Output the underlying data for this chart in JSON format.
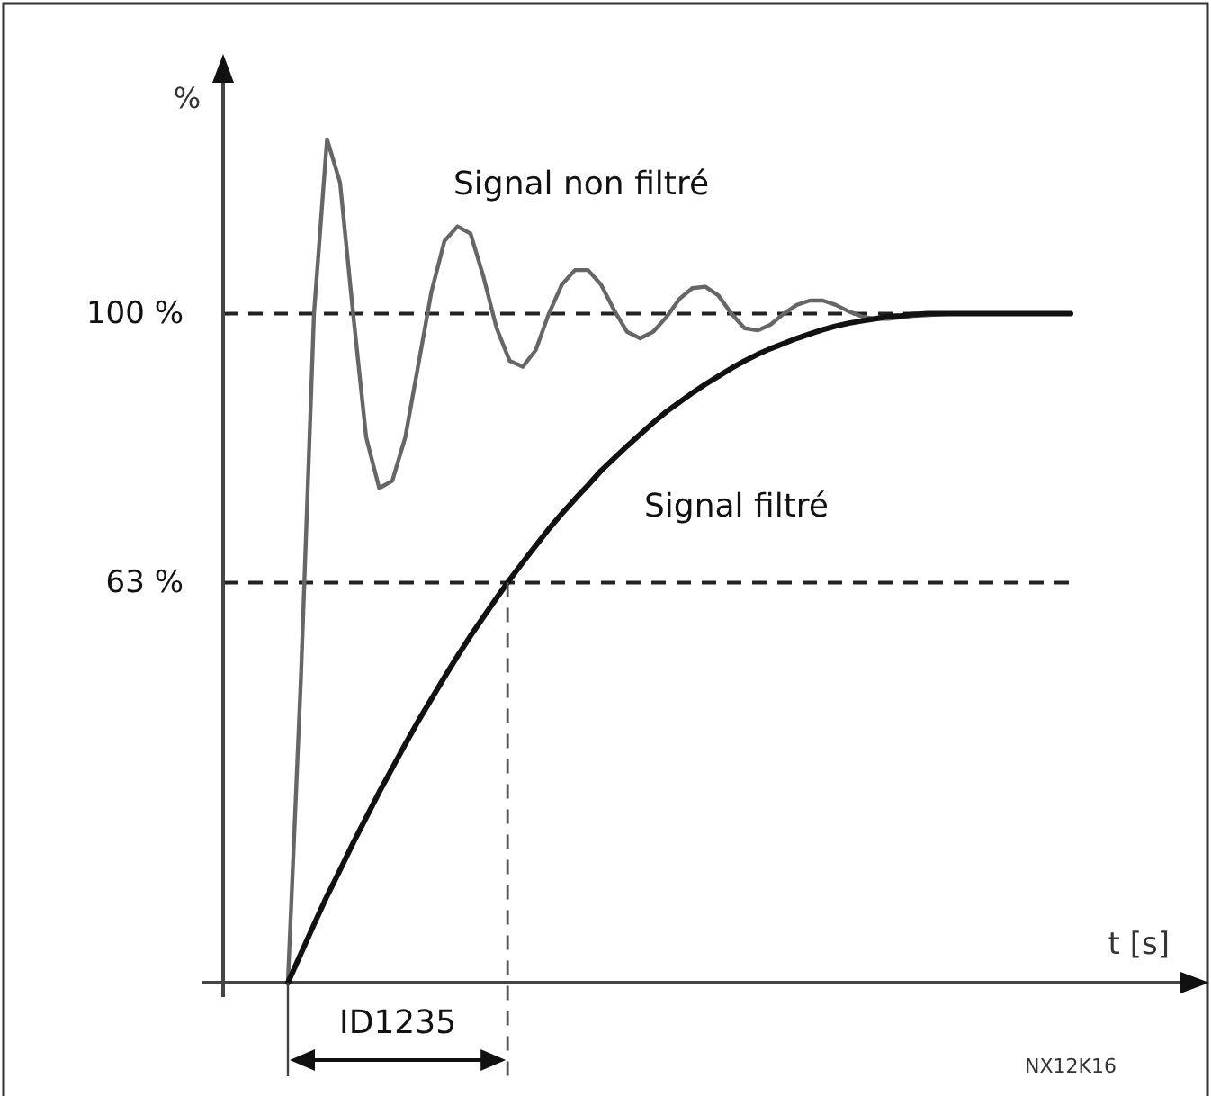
{
  "chart_data": {
    "type": "line",
    "ylabel": "%",
    "xlabel": "t [s]",
    "tick_labels": "y",
    "categories": [
      null,
      null,
      null,
      null,
      null,
      null,
      null,
      null,
      null,
      null,
      null,
      null,
      null,
      null,
      null,
      null,
      null,
      null,
      null,
      null,
      null,
      null,
      null,
      null,
      null,
      null,
      null,
      null,
      null,
      null,
      null,
      null,
      null,
      null,
      null,
      null,
      null,
      null,
      null,
      null,
      null,
      null,
      null,
      null,
      null,
      null,
      null,
      null,
      null,
      null,
      null,
      null,
      null,
      null,
      null,
      null,
      null,
      null,
      null,
      null,
      null
    ],
    "ylim": [
      8,
      132
    ],
    "yticks": [
      {
        "value": 63,
        "label": "63 %"
      },
      {
        "value": 100,
        "label": "100 %"
      }
    ],
    "series": [
      {
        "name": "Signal non filtré",
        "color": "#666666",
        "values": [
          8,
          50,
          100,
          124,
          118,
          100,
          83,
          76,
          77,
          83,
          93,
          103,
          110,
          112,
          111,
          105,
          98,
          93.5,
          92.7,
          95,
          100,
          104,
          106,
          106,
          104,
          100.5,
          97.5,
          96.6,
          97.5,
          99.5,
          102,
          103.5,
          103.7,
          102.5,
          100,
          98,
          97.7,
          98.5,
          100,
          101.2,
          101.8,
          101.8,
          101.2,
          100.3,
          99.6,
          99.3,
          99.3,
          99.5,
          99.7,
          99.8,
          99.9,
          100,
          100,
          100,
          100,
          100,
          100,
          100,
          100,
          100,
          100
        ]
      },
      {
        "name": "Signal filtré",
        "color": "#111111",
        "values": [
          8,
          12,
          16,
          19.9,
          23.5,
          27.2,
          30.7,
          34.2,
          37.5,
          40.8,
          44,
          47,
          50,
          52.9,
          55.7,
          58.3,
          60.9,
          63.4,
          65.8,
          68.1,
          70.4,
          72.5,
          74.5,
          76.4,
          78.4,
          80.1,
          81.8,
          83.4,
          85,
          86.5,
          87.8,
          89.1,
          90.3,
          91.4,
          92.5,
          93.5,
          94.4,
          95.2,
          95.9,
          96.6,
          97.2,
          97.8,
          98.3,
          98.7,
          99,
          99.3,
          99.6,
          99.7,
          99.9,
          100,
          100,
          100,
          100,
          100,
          100,
          100,
          100,
          100,
          100,
          100,
          100
        ]
      }
    ],
    "ref_lines": [
      {
        "axis": "y",
        "value": 100,
        "line_style": "dashed"
      },
      {
        "axis": "y",
        "value": 63,
        "line_style": "dashed"
      }
    ],
    "annotations": [
      "ID1235",
      "NX12K16"
    ]
  }
}
